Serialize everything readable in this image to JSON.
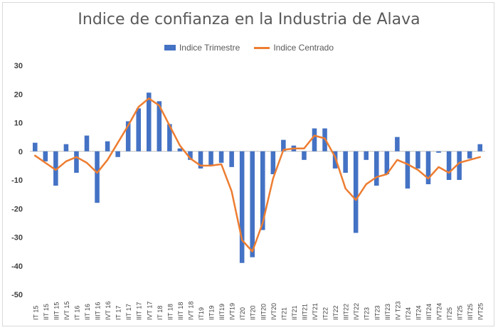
{
  "chart_data": {
    "type": "bar",
    "title": "Indice de confianza en la Industria de Alava",
    "ylim": [
      -50,
      30
    ],
    "yticks": [
      30,
      20,
      10,
      0,
      -10,
      -20,
      -30,
      -40,
      -50
    ],
    "legend_position": "top-center",
    "categories": [
      "IT 15",
      "IIT 15",
      "IIIT 15",
      "IVT 15",
      "IT 16",
      "IIT 16",
      "IIIT 16",
      "IVT 16",
      "IT 17",
      "IIT 17",
      "IIIT 17",
      "IVT 17",
      "IT 18",
      "IIT 18",
      "IIIT 18",
      "IVT 18",
      "IT19",
      "IIT19",
      "IIIT19",
      "IVT19",
      "IT20",
      "IIT20",
      "IIIT20",
      "IVT20",
      "IT21",
      "IIT21",
      "IIIT21",
      "IVT21",
      "IT22",
      "IIT22",
      "IIIT22",
      "IVT22",
      "IT23",
      "IIT23",
      "IIIT23",
      "IV T23",
      "IT24",
      "IIT24",
      "IIIT24",
      "IVT24",
      "IT25",
      "IIT25",
      "IIIT25",
      "IVT25"
    ],
    "series": [
      {
        "name": "Indice Trimestre",
        "kind": "bar",
        "color": "#4472c4",
        "values": [
          3,
          -3.5,
          -12,
          2.5,
          -7.5,
          5.5,
          -18,
          3.5,
          -2,
          10.5,
          15,
          20.5,
          17.5,
          9.5,
          1,
          -3,
          -6,
          -5,
          -4,
          -5.5,
          -39,
          -37,
          -27.5,
          -8,
          4,
          2,
          -3,
          8,
          8,
          -6,
          -7.5,
          -28.5,
          -3,
          -12,
          -8,
          5,
          -13,
          -6,
          -11.5,
          -0.5,
          -10,
          -10,
          -2.5,
          2.5
        ]
      },
      {
        "name": "Indice Centrado",
        "kind": "line",
        "color": "#ed7d31",
        "values": [
          -1.5,
          -4,
          -6.5,
          -3.5,
          -2,
          -4,
          -7.5,
          -3,
          3,
          9,
          15.5,
          18.5,
          16,
          9,
          2,
          -2.5,
          -5,
          -5,
          -4.5,
          -14,
          -31,
          -35,
          -25,
          -9.5,
          0.5,
          1,
          1,
          5.5,
          4.5,
          -2,
          -13,
          -17,
          -11.5,
          -9,
          -8,
          -3,
          -4.5,
          -6.5,
          -9.5,
          -5.5,
          -7.5,
          -4,
          -3,
          -2
        ]
      }
    ]
  }
}
